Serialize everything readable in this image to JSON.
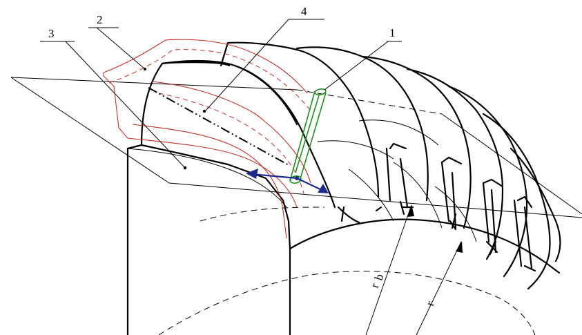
{
  "labels": {
    "tool": "1",
    "blank": "2",
    "tooth_surface": "3",
    "cutting_path": "4",
    "base_radius_main": "r",
    "base_radius_sub": "b",
    "pitch_radius": "r"
  },
  "colors": {
    "outline": "#000000",
    "blank_profile": "#c0302a",
    "tool": "#1e8c1e",
    "direction_arrows": "#1c2a8c"
  }
}
